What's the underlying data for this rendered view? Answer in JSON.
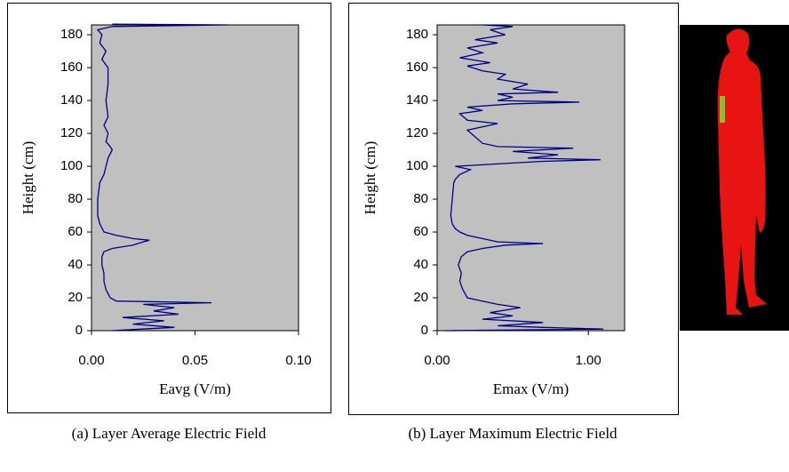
{
  "chart_data": [
    {
      "type": "line",
      "color": "#000080",
      "xlabel": "Eavg (V/m)",
      "ylabel": "Height (cm)",
      "caption": "(a) Layer Average Electric Field",
      "xlim": [
        0,
        0.1
      ],
      "xticks": [
        {
          "value": 0,
          "label": "0.00"
        },
        {
          "value": 0.05,
          "label": "0.05"
        },
        {
          "value": 0.1,
          "label": "0.10"
        }
      ],
      "ylim": [
        0,
        186
      ],
      "yticks": [
        0,
        20,
        40,
        60,
        80,
        100,
        120,
        140,
        160,
        180
      ],
      "values": [
        0,
        2,
        4,
        6,
        8,
        10,
        12,
        14,
        16,
        17,
        18,
        20,
        25,
        30,
        35,
        40,
        45,
        48,
        50,
        52,
        54,
        55,
        56,
        58,
        60,
        65,
        70,
        80,
        90,
        95,
        100,
        105,
        110,
        112,
        115,
        120,
        125,
        130,
        140,
        150,
        160,
        165,
        170,
        175,
        180,
        183,
        185,
        186,
        186.5
      ],
      "x": [
        0.01,
        0.04,
        0.02,
        0.035,
        0.015,
        0.042,
        0.03,
        0.04,
        0.025,
        0.058,
        0.012,
        0.009,
        0.007,
        0.006,
        0.006,
        0.005,
        0.005,
        0.006,
        0.01,
        0.02,
        0.025,
        0.028,
        0.02,
        0.012,
        0.006,
        0.004,
        0.003,
        0.003,
        0.004,
        0.006,
        0.007,
        0.008,
        0.01,
        0.009,
        0.007,
        0.008,
        0.006,
        0.008,
        0.007,
        0.008,
        0.008,
        0.005,
        0.007,
        0.004,
        0.005,
        0.003,
        0.01,
        0.066,
        0.01
      ]
    },
    {
      "type": "line",
      "color": "#000080",
      "xlabel": "Emax (V/m)",
      "ylabel": "Height (cm)",
      "caption": "(b) Layer Maximum Electric Field",
      "xlim": [
        0,
        1.24
      ],
      "xticks": [
        {
          "value": 0,
          "label": "0.00"
        },
        {
          "value": 1,
          "label": "1.00"
        }
      ],
      "ylim": [
        0,
        186
      ],
      "yticks": [
        0,
        20,
        40,
        60,
        80,
        100,
        120,
        140,
        160,
        180
      ],
      "values": [
        0,
        1,
        2,
        3,
        5,
        7,
        9,
        11,
        14,
        16,
        18,
        20,
        25,
        30,
        35,
        40,
        45,
        48,
        50,
        52,
        53,
        54,
        56,
        58,
        60,
        62,
        65,
        70,
        80,
        90,
        92,
        95,
        98,
        100,
        102,
        103,
        104,
        105,
        107,
        109,
        111,
        112,
        114,
        118,
        122,
        126,
        128,
        132,
        134,
        136,
        138,
        139,
        140,
        142,
        144,
        145,
        147,
        150,
        153,
        156,
        158,
        161,
        163,
        166,
        169,
        172,
        175,
        177,
        180,
        183,
        185,
        186
      ],
      "x": [
        0.05,
        1.1,
        0.7,
        0.4,
        0.7,
        0.3,
        0.5,
        0.35,
        0.55,
        0.4,
        0.3,
        0.2,
        0.17,
        0.15,
        0.16,
        0.14,
        0.16,
        0.2,
        0.3,
        0.45,
        0.7,
        0.4,
        0.3,
        0.2,
        0.15,
        0.12,
        0.1,
        0.09,
        0.1,
        0.11,
        0.12,
        0.15,
        0.22,
        0.12,
        0.5,
        0.7,
        1.08,
        0.6,
        0.8,
        0.5,
        0.9,
        0.4,
        0.3,
        0.25,
        0.2,
        0.4,
        0.2,
        0.15,
        0.3,
        0.2,
        0.5,
        0.94,
        0.4,
        0.5,
        0.4,
        0.8,
        0.5,
        0.6,
        0.4,
        0.45,
        0.3,
        0.2,
        0.35,
        0.15,
        0.3,
        0.2,
        0.4,
        0.25,
        0.45,
        0.35,
        0.5,
        0.3
      ]
    }
  ]
}
